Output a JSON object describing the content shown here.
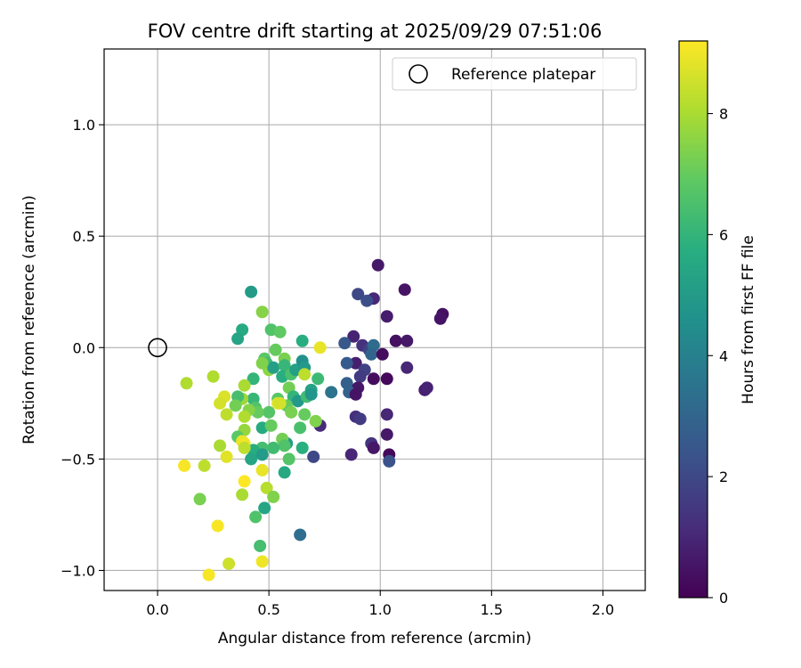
{
  "chart_data": {
    "type": "scatter",
    "title": "FOV centre drift starting at 2025/09/29 07:51:06",
    "xlabel": "Angular distance from reference (arcmin)",
    "ylabel": "Rotation from reference (arcmin)",
    "xlim": [
      -0.24,
      2.19
    ],
    "ylim": [
      -1.09,
      1.34
    ],
    "xticks": [
      0.0,
      0.5,
      1.0,
      1.5,
      2.0
    ],
    "xtick_labels": [
      "0.0",
      "0.5",
      "1.0",
      "1.5",
      "2.0"
    ],
    "yticks": [
      -1.0,
      -0.5,
      0.0,
      0.5,
      1.0
    ],
    "ytick_labels": [
      "−1.0",
      "−0.5",
      "0.0",
      "0.5",
      "1.0"
    ],
    "grid": true,
    "legend": {
      "label": "Reference platepar",
      "location": "top-right"
    },
    "reference_point": {
      "x": 0.0,
      "y": 0.0
    },
    "colorbar": {
      "label": "Hours from first FF file",
      "range": [
        0,
        9.2
      ],
      "ticks": [
        0,
        2,
        4,
        6,
        8
      ],
      "tick_labels": [
        "0",
        "2",
        "4",
        "6",
        "8"
      ],
      "colormap": "viridis"
    },
    "points": [
      {
        "x": 0.99,
        "y": 0.37,
        "h": 0.6
      },
      {
        "x": 1.11,
        "y": 0.26,
        "h": 0.5
      },
      {
        "x": 1.28,
        "y": 0.15,
        "h": 0.4
      },
      {
        "x": 1.27,
        "y": 0.13,
        "h": 0.5
      },
      {
        "x": 1.03,
        "y": 0.14,
        "h": 0.7
      },
      {
        "x": 1.07,
        "y": 0.03,
        "h": 0.4
      },
      {
        "x": 1.12,
        "y": 0.03,
        "h": 0.6
      },
      {
        "x": 0.97,
        "y": 0.22,
        "h": 1.0
      },
      {
        "x": 0.9,
        "y": 0.24,
        "h": 2.0
      },
      {
        "x": 0.94,
        "y": 0.21,
        "h": 2.2
      },
      {
        "x": 0.88,
        "y": 0.05,
        "h": 0.9
      },
      {
        "x": 0.92,
        "y": 0.01,
        "h": 1.3
      },
      {
        "x": 0.95,
        "y": -0.01,
        "h": 1.8
      },
      {
        "x": 0.97,
        "y": 0.01,
        "h": 3.2
      },
      {
        "x": 0.96,
        "y": -0.03,
        "h": 3.0
      },
      {
        "x": 1.01,
        "y": -0.03,
        "h": 0.3
      },
      {
        "x": 0.84,
        "y": 0.02,
        "h": 2.5
      },
      {
        "x": 0.89,
        "y": -0.07,
        "h": 0.8
      },
      {
        "x": 0.85,
        "y": -0.07,
        "h": 2.6
      },
      {
        "x": 0.93,
        "y": -0.1,
        "h": 1.8
      },
      {
        "x": 1.12,
        "y": -0.09,
        "h": 1.0
      },
      {
        "x": 0.91,
        "y": -0.13,
        "h": 1.6
      },
      {
        "x": 0.97,
        "y": -0.14,
        "h": 0.3
      },
      {
        "x": 1.03,
        "y": -0.14,
        "h": 0.2
      },
      {
        "x": 0.85,
        "y": -0.16,
        "h": 2.8
      },
      {
        "x": 0.9,
        "y": -0.18,
        "h": 0.6
      },
      {
        "x": 0.86,
        "y": -0.2,
        "h": 2.9
      },
      {
        "x": 0.89,
        "y": -0.21,
        "h": 0.5
      },
      {
        "x": 1.2,
        "y": -0.19,
        "h": 0.8
      },
      {
        "x": 1.21,
        "y": -0.18,
        "h": 0.9
      },
      {
        "x": 0.78,
        "y": -0.2,
        "h": 3.5
      },
      {
        "x": 0.73,
        "y": -0.35,
        "h": 1.1
      },
      {
        "x": 0.89,
        "y": -0.31,
        "h": 1.2
      },
      {
        "x": 0.91,
        "y": -0.32,
        "h": 1.6
      },
      {
        "x": 1.03,
        "y": -0.3,
        "h": 1.0
      },
      {
        "x": 0.96,
        "y": -0.43,
        "h": 1.4
      },
      {
        "x": 0.97,
        "y": -0.45,
        "h": 0.6
      },
      {
        "x": 1.03,
        "y": -0.39,
        "h": 0.6
      },
      {
        "x": 1.04,
        "y": -0.48,
        "h": 0.2
      },
      {
        "x": 1.04,
        "y": -0.51,
        "h": 2.3
      },
      {
        "x": 0.87,
        "y": -0.48,
        "h": 1.0
      },
      {
        "x": 0.7,
        "y": -0.49,
        "h": 2.0
      },
      {
        "x": 0.64,
        "y": -0.84,
        "h": 3.3
      },
      {
        "x": 0.72,
        "y": -0.14,
        "h": 6.2
      },
      {
        "x": 0.42,
        "y": 0.25,
        "h": 5.0
      },
      {
        "x": 0.47,
        "y": 0.16,
        "h": 7.5
      },
      {
        "x": 0.38,
        "y": 0.08,
        "h": 5.6
      },
      {
        "x": 0.36,
        "y": 0.04,
        "h": 5.3
      },
      {
        "x": 0.51,
        "y": 0.08,
        "h": 6.6
      },
      {
        "x": 0.55,
        "y": 0.07,
        "h": 6.9
      },
      {
        "x": 0.65,
        "y": 0.03,
        "h": 5.7
      },
      {
        "x": 0.53,
        "y": -0.01,
        "h": 7.0
      },
      {
        "x": 0.48,
        "y": -0.05,
        "h": 6.8
      },
      {
        "x": 0.49,
        "y": -0.07,
        "h": 6.3
      },
      {
        "x": 0.5,
        "y": -0.1,
        "h": 7.6
      },
      {
        "x": 0.52,
        "y": -0.09,
        "h": 5.2
      },
      {
        "x": 0.57,
        "y": -0.05,
        "h": 7.3
      },
      {
        "x": 0.57,
        "y": -0.08,
        "h": 6.1
      },
      {
        "x": 0.56,
        "y": -0.13,
        "h": 5.7
      },
      {
        "x": 0.6,
        "y": -0.12,
        "h": 6.5
      },
      {
        "x": 0.62,
        "y": -0.1,
        "h": 5.2
      },
      {
        "x": 0.65,
        "y": -0.06,
        "h": 4.6
      },
      {
        "x": 0.66,
        "y": -0.09,
        "h": 4.9
      },
      {
        "x": 0.66,
        "y": -0.12,
        "h": 8.3
      },
      {
        "x": 0.73,
        "y": 0.0,
        "h": 8.9
      },
      {
        "x": 0.59,
        "y": -0.18,
        "h": 7.2
      },
      {
        "x": 0.61,
        "y": -0.22,
        "h": 6.0
      },
      {
        "x": 0.63,
        "y": -0.24,
        "h": 4.9
      },
      {
        "x": 0.67,
        "y": -0.22,
        "h": 6.3
      },
      {
        "x": 0.69,
        "y": -0.19,
        "h": 5.3
      },
      {
        "x": 0.69,
        "y": -0.21,
        "h": 4.8
      },
      {
        "x": 0.58,
        "y": -0.26,
        "h": 7.0
      },
      {
        "x": 0.6,
        "y": -0.29,
        "h": 7.3
      },
      {
        "x": 0.66,
        "y": -0.3,
        "h": 7.0
      },
      {
        "x": 0.71,
        "y": -0.33,
        "h": 7.4
      },
      {
        "x": 0.64,
        "y": -0.36,
        "h": 6.5
      },
      {
        "x": 0.54,
        "y": -0.23,
        "h": 6.8
      },
      {
        "x": 0.54,
        "y": -0.25,
        "h": 8.8
      },
      {
        "x": 0.55,
        "y": -0.25,
        "h": 8.6
      },
      {
        "x": 0.5,
        "y": -0.29,
        "h": 6.7
      },
      {
        "x": 0.47,
        "y": -0.36,
        "h": 5.6
      },
      {
        "x": 0.51,
        "y": -0.35,
        "h": 7.0
      },
      {
        "x": 0.58,
        "y": -0.43,
        "h": 5.0
      },
      {
        "x": 0.56,
        "y": -0.41,
        "h": 7.2
      },
      {
        "x": 0.57,
        "y": -0.44,
        "h": 6.6
      },
      {
        "x": 0.65,
        "y": -0.45,
        "h": 5.8
      },
      {
        "x": 0.59,
        "y": -0.5,
        "h": 6.7
      },
      {
        "x": 0.52,
        "y": -0.45,
        "h": 6.3
      },
      {
        "x": 0.47,
        "y": -0.45,
        "h": 6.4
      },
      {
        "x": 0.43,
        "y": -0.46,
        "h": 5.7
      },
      {
        "x": 0.42,
        "y": -0.5,
        "h": 5.4
      },
      {
        "x": 0.47,
        "y": -0.48,
        "h": 5.0
      },
      {
        "x": 0.57,
        "y": -0.56,
        "h": 5.5
      },
      {
        "x": 0.47,
        "y": -0.55,
        "h": 8.9
      },
      {
        "x": 0.43,
        "y": -0.14,
        "h": 6.0
      },
      {
        "x": 0.43,
        "y": -0.23,
        "h": 6.1
      },
      {
        "x": 0.44,
        "y": -0.27,
        "h": 6.6
      },
      {
        "x": 0.45,
        "y": -0.29,
        "h": 7.0
      },
      {
        "x": 0.41,
        "y": -0.28,
        "h": 7.5
      },
      {
        "x": 0.39,
        "y": -0.17,
        "h": 8.0
      },
      {
        "x": 0.38,
        "y": -0.23,
        "h": 7.8
      },
      {
        "x": 0.36,
        "y": -0.22,
        "h": 6.4
      },
      {
        "x": 0.35,
        "y": -0.26,
        "h": 7.2
      },
      {
        "x": 0.31,
        "y": -0.3,
        "h": 8.3
      },
      {
        "x": 0.39,
        "y": -0.31,
        "h": 8.1
      },
      {
        "x": 0.39,
        "y": -0.37,
        "h": 7.7
      },
      {
        "x": 0.36,
        "y": -0.4,
        "h": 6.8
      },
      {
        "x": 0.38,
        "y": -0.42,
        "h": 8.9
      },
      {
        "x": 0.39,
        "y": -0.43,
        "h": 9.0
      },
      {
        "x": 0.39,
        "y": -0.45,
        "h": 8.3
      },
      {
        "x": 0.31,
        "y": -0.49,
        "h": 8.8
      },
      {
        "x": 0.28,
        "y": -0.44,
        "h": 8.0
      },
      {
        "x": 0.25,
        "y": -0.13,
        "h": 8.1
      },
      {
        "x": 0.3,
        "y": -0.22,
        "h": 8.7
      },
      {
        "x": 0.28,
        "y": -0.25,
        "h": 8.6
      },
      {
        "x": 0.13,
        "y": -0.16,
        "h": 8.1
      },
      {
        "x": 0.12,
        "y": -0.53,
        "h": 9.1
      },
      {
        "x": 0.21,
        "y": -0.53,
        "h": 8.3
      },
      {
        "x": 0.19,
        "y": -0.68,
        "h": 7.3
      },
      {
        "x": 0.39,
        "y": -0.6,
        "h": 9.2
      },
      {
        "x": 0.38,
        "y": -0.66,
        "h": 8.0
      },
      {
        "x": 0.49,
        "y": -0.63,
        "h": 8.2
      },
      {
        "x": 0.52,
        "y": -0.67,
        "h": 7.4
      },
      {
        "x": 0.48,
        "y": -0.72,
        "h": 5.4
      },
      {
        "x": 0.44,
        "y": -0.76,
        "h": 6.6
      },
      {
        "x": 0.27,
        "y": -0.8,
        "h": 9.1
      },
      {
        "x": 0.46,
        "y": -0.89,
        "h": 6.4
      },
      {
        "x": 0.47,
        "y": -0.96,
        "h": 9.0
      },
      {
        "x": 0.32,
        "y": -0.97,
        "h": 8.5
      },
      {
        "x": 0.23,
        "y": -1.02,
        "h": 9.1
      },
      {
        "x": 0.47,
        "y": -0.07,
        "h": 7.4
      }
    ]
  }
}
